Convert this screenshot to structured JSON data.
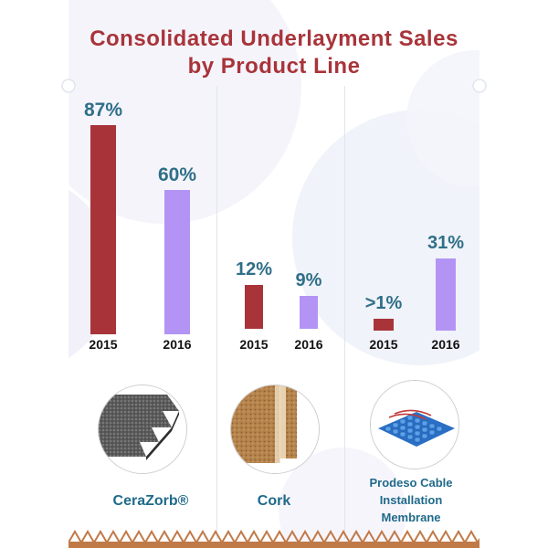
{
  "title_line1": "Consolidated Underlayment Sales",
  "title_line2": "by Product Line",
  "colors": {
    "title": "#a8343a",
    "bar_2015": "#a8343a",
    "bar_2016": "#b394f4",
    "value_label": "#2f6f88",
    "product_label": "#1f6a8a",
    "zigzag": "#c07a48"
  },
  "chart_data": [
    {
      "type": "bar",
      "title": "Consolidated Underlayment Sales by Product Line",
      "product": "CeraZorb®",
      "image_icon": "cerazorb-sheets-icon",
      "categories": [
        "2015",
        "2016"
      ],
      "values": [
        87,
        60
      ],
      "value_labels": [
        "87%",
        "60%"
      ]
    },
    {
      "type": "bar",
      "product": "Cork",
      "image_icon": "cork-sheets-icon",
      "categories": [
        "2015",
        "2016"
      ],
      "values": [
        12,
        9
      ],
      "value_labels": [
        "12%",
        "9%"
      ]
    },
    {
      "type": "bar",
      "product": "Prodeso Cable Installation Membrane",
      "product_lines": [
        "Prodeso Cable",
        "Installation",
        "Membrane"
      ],
      "image_icon": "membrane-grid-icon",
      "categories": [
        "2015",
        "2016"
      ],
      "values": [
        1,
        31
      ],
      "value_labels": [
        ">1%",
        "31%"
      ]
    }
  ]
}
